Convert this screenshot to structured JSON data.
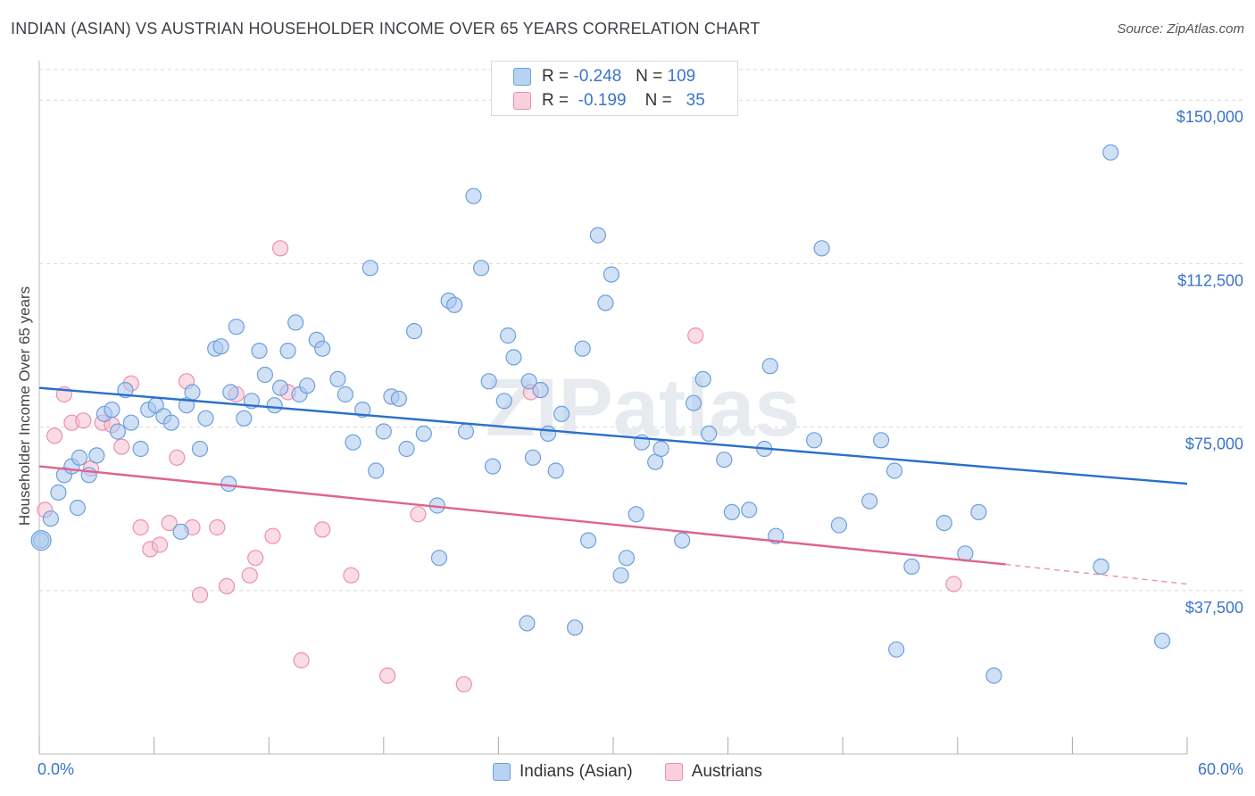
{
  "header": {
    "title": "INDIAN (ASIAN) VS AUSTRIAN HOUSEHOLDER INCOME OVER 65 YEARS CORRELATION CHART",
    "source": "Source: ZipAtlas.com"
  },
  "legend": {
    "rows": [
      {
        "r_label": "R =",
        "r_value": "-0.248",
        "n_label": "N =",
        "n_value": "109"
      },
      {
        "r_label": "R =",
        "r_value": "-0.199",
        "n_label": "N =",
        "n_value": "35"
      }
    ],
    "series_names": [
      "Indians (Asian)",
      "Austrians"
    ]
  },
  "colors": {
    "blue_fill": "#a9c8ef",
    "blue_stroke": "#6d9fdc",
    "blue_line": "#2a6fcc",
    "pink_fill": "#f6bfd0",
    "pink_stroke": "#ec8fae",
    "pink_line": "#e0628e",
    "axis_text": "#3a74c9",
    "grid": "#d8d8d8"
  },
  "watermark": "ZIPatlas",
  "chart_data": {
    "type": "scatter",
    "title": "INDIAN (ASIAN) VS AUSTRIAN HOUSEHOLDER INCOME OVER 65 YEARS CORRELATION CHART",
    "xlabel": "",
    "ylabel": "Householder Income Over 65 years",
    "xlim": [
      0,
      60
    ],
    "ylim": [
      0,
      157000
    ],
    "x_tick_labels": [
      "0.0%",
      "60.0%"
    ],
    "y_ticks": [
      37500,
      75000,
      112500,
      150000
    ],
    "y_tick_labels": [
      "$37,500",
      "$75,000",
      "$112,500",
      "$150,000"
    ],
    "grid": true,
    "legend_position": "top-center",
    "series": [
      {
        "name": "Indians (Asian)",
        "trend": {
          "x": [
            0,
            60
          ],
          "y": [
            84000,
            62000
          ]
        },
        "points": [
          [
            0.1,
            49000
          ],
          [
            0.6,
            54000
          ],
          [
            1.0,
            60000
          ],
          [
            1.3,
            64000
          ],
          [
            1.7,
            66000
          ],
          [
            2.1,
            68000
          ],
          [
            2.6,
            64000
          ],
          [
            3.0,
            68500
          ],
          [
            3.4,
            78000
          ],
          [
            3.8,
            79000
          ],
          [
            4.1,
            74000
          ],
          [
            4.5,
            83500
          ],
          [
            4.8,
            76000
          ],
          [
            5.3,
            70000
          ],
          [
            5.7,
            79000
          ],
          [
            6.1,
            80000
          ],
          [
            6.5,
            77500
          ],
          [
            6.9,
            76000
          ],
          [
            7.4,
            51000
          ],
          [
            7.7,
            80000
          ],
          [
            8.0,
            83000
          ],
          [
            8.4,
            70000
          ],
          [
            8.7,
            77000
          ],
          [
            9.2,
            93000
          ],
          [
            9.5,
            93500
          ],
          [
            10.0,
            83000
          ],
          [
            10.3,
            98000
          ],
          [
            10.7,
            77000
          ],
          [
            11.1,
            81000
          ],
          [
            11.5,
            92500
          ],
          [
            11.8,
            87000
          ],
          [
            12.3,
            80000
          ],
          [
            12.6,
            84000
          ],
          [
            13.0,
            92500
          ],
          [
            13.4,
            99000
          ],
          [
            13.6,
            82500
          ],
          [
            14.0,
            84500
          ],
          [
            14.5,
            95000
          ],
          [
            14.8,
            93000
          ],
          [
            15.6,
            86000
          ],
          [
            16.0,
            82500
          ],
          [
            16.4,
            71500
          ],
          [
            16.9,
            79000
          ],
          [
            17.3,
            111500
          ],
          [
            17.6,
            65000
          ],
          [
            18.0,
            74000
          ],
          [
            18.4,
            82000
          ],
          [
            18.8,
            81500
          ],
          [
            19.2,
            70000
          ],
          [
            19.6,
            97000
          ],
          [
            20.1,
            73500
          ],
          [
            20.8,
            57000
          ],
          [
            20.9,
            45000
          ],
          [
            21.4,
            104000
          ],
          [
            21.7,
            103000
          ],
          [
            22.3,
            74000
          ],
          [
            22.7,
            128000
          ],
          [
            23.1,
            111500
          ],
          [
            23.5,
            85500
          ],
          [
            23.7,
            66000
          ],
          [
            24.3,
            81000
          ],
          [
            24.5,
            96000
          ],
          [
            24.8,
            91000
          ],
          [
            25.5,
            30000
          ],
          [
            25.8,
            68000
          ],
          [
            25.6,
            85500
          ],
          [
            26.2,
            83500
          ],
          [
            26.6,
            73500
          ],
          [
            27.0,
            65000
          ],
          [
            27.3,
            78000
          ],
          [
            28.0,
            29000
          ],
          [
            28.4,
            93000
          ],
          [
            28.7,
            49000
          ],
          [
            29.2,
            119000
          ],
          [
            29.6,
            103500
          ],
          [
            29.9,
            110000
          ],
          [
            30.4,
            41000
          ],
          [
            30.7,
            45000
          ],
          [
            31.2,
            55000
          ],
          [
            31.5,
            71500
          ],
          [
            32.2,
            67000
          ],
          [
            32.5,
            70000
          ],
          [
            33.6,
            49000
          ],
          [
            34.2,
            80500
          ],
          [
            34.7,
            86000
          ],
          [
            35.0,
            73500
          ],
          [
            35.8,
            67500
          ],
          [
            36.2,
            55500
          ],
          [
            37.1,
            56000
          ],
          [
            37.9,
            70000
          ],
          [
            38.2,
            89000
          ],
          [
            38.5,
            50000
          ],
          [
            40.5,
            72000
          ],
          [
            40.9,
            116000
          ],
          [
            41.8,
            52500
          ],
          [
            43.4,
            58000
          ],
          [
            44.0,
            72000
          ],
          [
            44.7,
            65000
          ],
          [
            44.8,
            24000
          ],
          [
            45.6,
            43000
          ],
          [
            47.3,
            53000
          ],
          [
            48.4,
            46000
          ],
          [
            49.1,
            55500
          ],
          [
            49.9,
            18000
          ],
          [
            55.5,
            43000
          ],
          [
            56.0,
            138000
          ],
          [
            58.7,
            26000
          ],
          [
            9.9,
            62000
          ],
          [
            2.0,
            56500
          ]
        ]
      },
      {
        "name": "Austrians",
        "trend": {
          "x": [
            0,
            50.5
          ],
          "y": [
            66000,
            43500
          ]
        },
        "trend_dashed": {
          "x": [
            50.5,
            60
          ],
          "y": [
            43500,
            39000
          ]
        },
        "points": [
          [
            0.3,
            56000
          ],
          [
            0.8,
            73000
          ],
          [
            1.3,
            82500
          ],
          [
            1.7,
            76000
          ],
          [
            2.3,
            76500
          ],
          [
            2.7,
            65500
          ],
          [
            3.3,
            76000
          ],
          [
            3.8,
            75500
          ],
          [
            4.3,
            70500
          ],
          [
            4.8,
            85000
          ],
          [
            5.3,
            52000
          ],
          [
            5.8,
            47000
          ],
          [
            6.3,
            48000
          ],
          [
            6.8,
            53000
          ],
          [
            7.2,
            68000
          ],
          [
            7.7,
            85500
          ],
          [
            8.0,
            52000
          ],
          [
            8.4,
            36500
          ],
          [
            9.3,
            52000
          ],
          [
            9.8,
            38500
          ],
          [
            10.3,
            82500
          ],
          [
            11.0,
            41000
          ],
          [
            11.3,
            45000
          ],
          [
            12.2,
            50000
          ],
          [
            12.6,
            116000
          ],
          [
            13.0,
            83000
          ],
          [
            13.7,
            21500
          ],
          [
            14.8,
            51500
          ],
          [
            16.3,
            41000
          ],
          [
            18.2,
            18000
          ],
          [
            19.8,
            55000
          ],
          [
            22.2,
            16000
          ],
          [
            25.7,
            83000
          ],
          [
            34.3,
            96000
          ],
          [
            47.8,
            39000
          ]
        ]
      }
    ]
  }
}
